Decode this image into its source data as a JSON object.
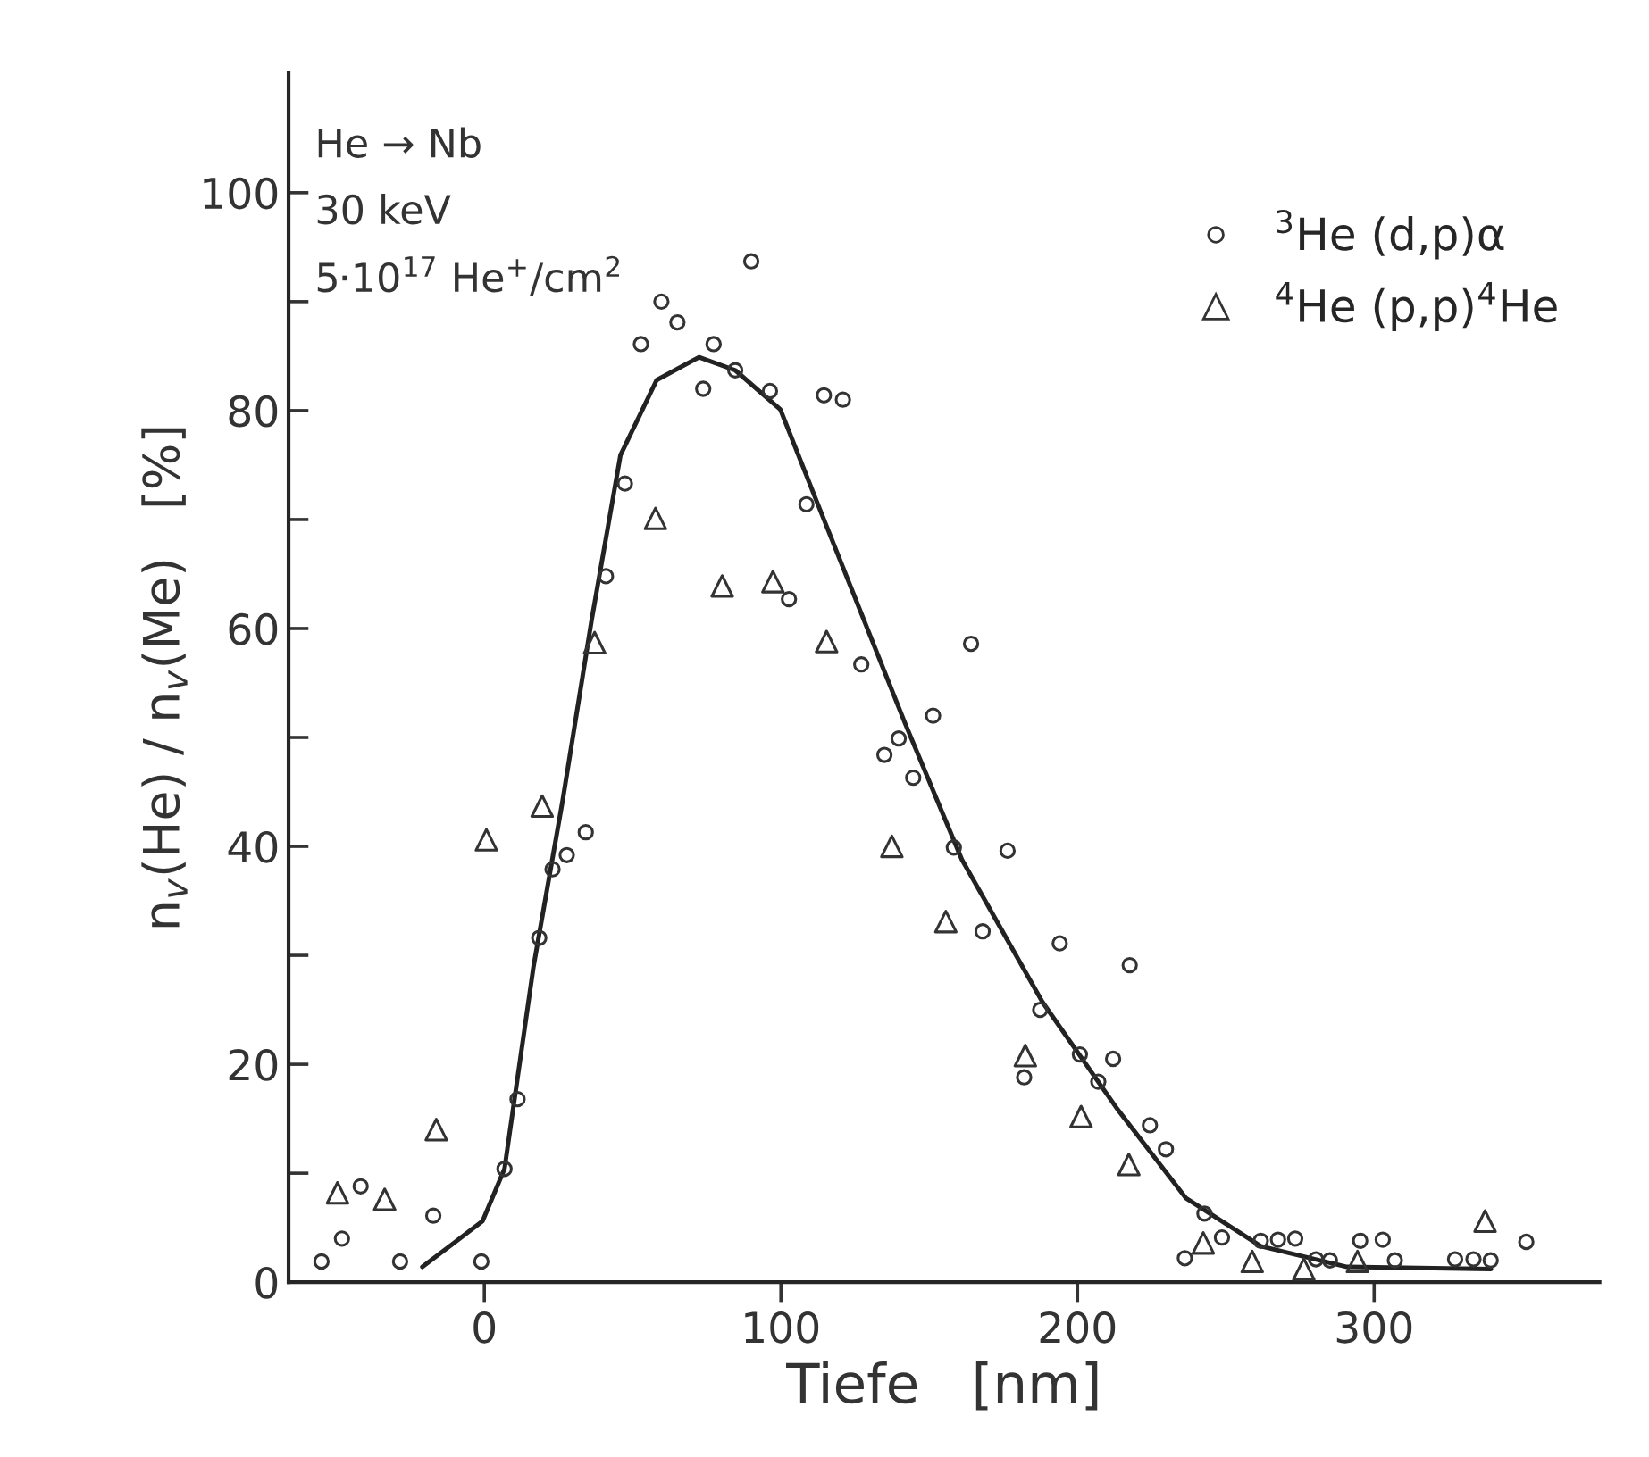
{
  "chart_data": {
    "type": "scatter",
    "xlabel": "Tiefe   [nm]",
    "ylabel": "n$_{v}$(He) / n$_{v}$(Me)   [%]",
    "xlim": [
      -66,
      376
    ],
    "xticks": [
      0,
      100,
      200,
      300
    ],
    "ylim": [
      0,
      111
    ],
    "yticks": [
      0,
      {
        "value": 10,
        "label": null
      },
      20,
      {
        "value": 30,
        "label": null
      },
      40,
      {
        "value": 50,
        "label": null
      },
      60,
      {
        "value": 70,
        "label": null
      },
      80,
      {
        "value": 90,
        "label": null
      },
      100
    ],
    "grid": false,
    "legend": "top right",
    "annotations": [
      "He → Nb",
      "30 keV",
      "5·10$^{17}$ He$^{+}$/cm$^{2}$"
    ],
    "series": [
      {
        "name": "$^{3}$He (d,p)α",
        "marker": "circle",
        "color": "#333333",
        "x": [
          -54.9,
          -48,
          -41.7,
          -28.4,
          -17.2,
          -1.0,
          6.8,
          11.2,
          18.5,
          23.0,
          27.8,
          34.2,
          41.0,
          47.4,
          52.8,
          59.7,
          65.1,
          73.8,
          77.3,
          84.6,
          90.0,
          96.3,
          108.6,
          102.7,
          114.5,
          120.9,
          127.1,
          164.1,
          151.3,
          139.7,
          134.9,
          144.6,
          158.3,
          176.4,
          168.0,
          194.0,
          217.6,
          187.4,
          200.8,
          212.0,
          207.0,
          182.0,
          224.4,
          229.8,
          242.8,
          248.7,
          236.2,
          261.8,
          267.6,
          273.4,
          280.4,
          285.1,
          295.3,
          302.9,
          307.0,
          327.3,
          333.5,
          339.3,
          351.3
        ],
        "values": [
          1.9,
          4.0,
          8.8,
          1.9,
          6.1,
          1.9,
          10.4,
          16.8,
          31.6,
          37.9,
          39.2,
          41.3,
          64.8,
          73.3,
          86.1,
          90.0,
          88.1,
          82.0,
          86.1,
          83.7,
          93.7,
          81.8,
          71.4,
          62.7,
          81.4,
          81.0,
          56.7,
          58.6,
          52.0,
          49.9,
          48.4,
          46.3,
          39.9,
          39.6,
          32.2,
          31.1,
          29.1,
          25.0,
          20.9,
          20.5,
          18.4,
          18.8,
          14.4,
          12.2,
          6.3,
          4.1,
          2.2,
          3.8,
          3.9,
          4.0,
          2.1,
          2.0,
          3.8,
          3.9,
          2.0,
          2.1,
          2.1,
          2.0,
          3.7
        ]
      },
      {
        "name": "$^{4}$He (p,p)$^{4}$He",
        "marker": "triangle",
        "color": "#333333",
        "x": [
          -49.5,
          -33.6,
          -16.2,
          0.7,
          19.5,
          37.2,
          57.7,
          80.2,
          97.3,
          115.4,
          137.4,
          155.6,
          182.4,
          201.2,
          217.3,
          242.4,
          258.9,
          276.3,
          294.4,
          337.4
        ],
        "values": [
          8.2,
          7.6,
          14.0,
          40.6,
          43.7,
          58.7,
          70.1,
          63.9,
          64.3,
          58.8,
          40.0,
          33.1,
          20.8,
          15.2,
          10.8,
          3.6,
          1.9,
          1.2,
          1.9,
          5.6
        ]
      },
      {
        "type": "line",
        "color": "#222222",
        "line_style": "solid",
        "marker": "none",
        "x": [
          -20.9,
          -0.6,
          6.8,
          16.6,
          26.4,
          36.2,
          45.9,
          58.1,
          72.4,
          84.6,
          99.8,
          112.6,
          141.7,
          161,
          188.2,
          213.4,
          236.6,
          261.8,
          290.9,
          339.4
        ],
        "values": [
          1.4,
          5.6,
          10.4,
          29,
          44.2,
          60.8,
          75.9,
          82.8,
          84.9,
          83.7,
          80.1,
          71.3,
          51.4,
          38.8,
          25.7,
          15.9,
          7.7,
          3.3,
          1.4,
          1.2
        ]
      }
    ]
  }
}
